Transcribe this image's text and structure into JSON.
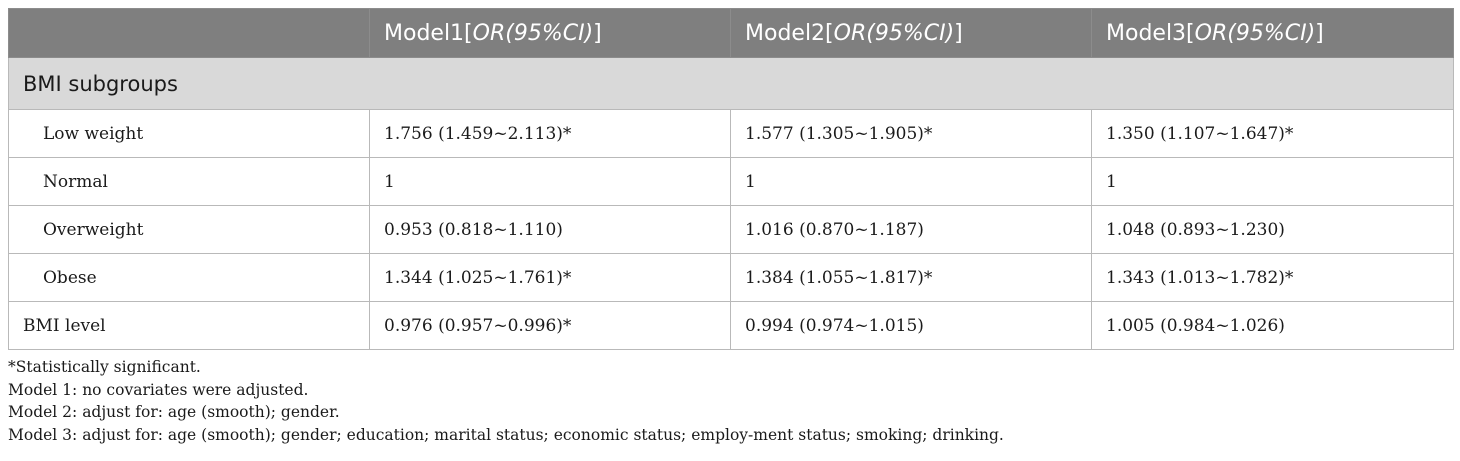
{
  "table": {
    "headers": [
      {
        "prefix": "",
        "italic": "",
        "suffix": ""
      },
      {
        "prefix": "Model1[",
        "italic": "OR(95%CI)",
        "suffix": "]"
      },
      {
        "prefix": "Model2[",
        "italic": "OR(95%CI)",
        "suffix": "]"
      },
      {
        "prefix": "Model3[",
        "italic": "OR(95%CI)",
        "suffix": "]"
      }
    ],
    "group_label": "BMI subgroups",
    "rows": [
      {
        "label": "Low weight",
        "m1": "1.756 (1.459~2.113)*",
        "m2": "1.577 (1.305~1.905)*",
        "m3": "1.350 (1.107~1.647)*"
      },
      {
        "label": "Normal",
        "m1": "1",
        "m2": "1",
        "m3": "1"
      },
      {
        "label": "Overweight",
        "m1": "0.953 (0.818~1.110)",
        "m2": "1.016 (0.870~1.187)",
        "m3": "1.048 (0.893~1.230)"
      },
      {
        "label": "Obese",
        "m1": "1.344 (1.025~1.761)*",
        "m2": "1.384 (1.055~1.817)*",
        "m3": "1.343 (1.013~1.782)*"
      }
    ],
    "level_row": {
      "label": "BMI level",
      "m1": "0.976 (0.957~0.996)*",
      "m2": "0.994 (0.974~1.015)",
      "m3": "1.005 (0.984~1.026)"
    }
  },
  "footnotes": [
    "*Statistically significant.",
    "Model 1: no covariates were adjusted.",
    "Model 2: adjust for: age (smooth); gender.",
    "Model 3: adjust for: age (smooth); gender; education; marital status; economic status; employ-ment status; smoking; drinking."
  ]
}
